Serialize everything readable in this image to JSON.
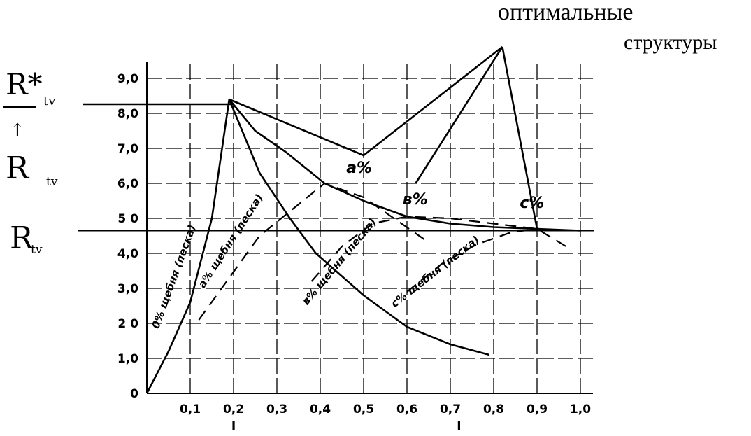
{
  "chart_data": {
    "type": "line",
    "title": "",
    "xlabel": "",
    "ylabel": "",
    "xlim": [
      0,
      1.0
    ],
    "ylim": [
      0,
      9.0
    ],
    "grid": true,
    "x_ticks": [
      "0,1",
      "0,2",
      "0,3",
      "0,4",
      "0,5",
      "0,6",
      "0,7",
      "0,8",
      "0,9",
      "1,0"
    ],
    "y_ticks": [
      {
        "v": 0,
        "label": "0"
      },
      {
        "v": 1,
        "label": "1,0"
      },
      {
        "v": 2,
        "label": "2 0"
      },
      {
        "v": 3,
        "label": "3,0"
      },
      {
        "v": 4,
        "label": "4,0"
      },
      {
        "v": 5,
        "label": "5 0"
      },
      {
        "v": 6,
        "label": "6,0"
      },
      {
        "v": 7,
        "label": "7,0"
      },
      {
        "v": 8,
        "label": "8,0"
      },
      {
        "v": 9,
        "label": "9,0"
      }
    ],
    "levels": [
      {
        "label": "R*",
        "sub": "tv",
        "y": 8.5
      },
      {
        "label": "R",
        "sub": "tv",
        "y": 4.65
      }
    ],
    "arrow": {
      "symbol": "↑",
      "label": "R",
      "sub": "tv"
    },
    "optimal_label": [
      "оптимальные",
      "структуры"
    ],
    "solid_series": [
      {
        "points": [
          [
            0.0,
            0.0
          ],
          [
            0.05,
            1.2
          ],
          [
            0.1,
            2.6
          ],
          [
            0.15,
            5.0
          ],
          [
            0.19,
            8.4
          ]
        ]
      },
      {
        "points": [
          [
            0.19,
            8.4
          ],
          [
            0.26,
            6.3
          ],
          [
            0.33,
            5.0
          ],
          [
            0.39,
            4.0
          ],
          [
            0.5,
            2.8
          ],
          [
            0.6,
            1.9
          ],
          [
            0.7,
            1.4
          ],
          [
            0.79,
            1.1
          ]
        ]
      },
      {
        "points": [
          [
            0.19,
            8.4
          ],
          [
            0.25,
            7.5
          ],
          [
            0.32,
            6.9
          ],
          [
            0.41,
            6.0
          ],
          [
            0.5,
            5.5
          ],
          [
            0.6,
            5.05
          ],
          [
            0.7,
            4.85
          ],
          [
            0.8,
            4.75
          ],
          [
            0.9,
            4.7
          ],
          [
            1.0,
            4.65
          ]
        ]
      },
      {
        "points": [
          [
            0.19,
            8.4
          ],
          [
            0.5,
            6.8
          ],
          [
            0.82,
            9.9
          ]
        ]
      },
      {
        "points": [
          [
            0.62,
            6.0
          ],
          [
            0.82,
            9.9
          ]
        ]
      },
      {
        "points": [
          [
            0.82,
            9.9
          ],
          [
            0.9,
            4.7
          ]
        ]
      }
    ],
    "dashed_series": [
      {
        "points": [
          [
            0.12,
            2.1
          ],
          [
            0.19,
            3.3
          ],
          [
            0.26,
            4.5
          ],
          [
            0.34,
            5.3
          ],
          [
            0.41,
            6.0
          ],
          [
            0.5,
            5.6
          ],
          [
            0.57,
            5.0
          ],
          [
            0.64,
            4.4
          ]
        ]
      },
      {
        "points": [
          [
            0.38,
            3.2
          ],
          [
            0.45,
            4.2
          ],
          [
            0.52,
            4.85
          ],
          [
            0.6,
            5.05
          ],
          [
            0.7,
            5.0
          ],
          [
            0.8,
            4.85
          ],
          [
            0.9,
            4.7
          ],
          [
            0.98,
            4.1
          ]
        ]
      },
      {
        "points": [
          [
            0.6,
            2.9
          ],
          [
            0.68,
            3.7
          ],
          [
            0.76,
            4.25
          ],
          [
            0.84,
            4.6
          ],
          [
            0.9,
            4.7
          ]
        ]
      }
    ],
    "point_labels": [
      {
        "text": "a%",
        "x": 0.46,
        "y": 6.3
      },
      {
        "text": "в%",
        "x": 0.59,
        "y": 5.4
      },
      {
        "text": "c%",
        "x": 0.86,
        "y": 5.3
      }
    ],
    "curve_labels": [
      {
        "text": "0% щебня (песка)",
        "x": 0.07,
        "y": 3.3,
        "angle": -70
      },
      {
        "text": "a% щебня (песка)",
        "x": 0.2,
        "y": 4.3,
        "angle": -57
      },
      {
        "text": "в% щебня (песка)",
        "x": 0.45,
        "y": 3.7,
        "angle": -50
      },
      {
        "text": "c% щебня (песка)",
        "x": 0.67,
        "y": 3.4,
        "angle": -38
      }
    ],
    "markers": [
      {
        "label": "I",
        "x": 0.2
      },
      {
        "label": "I",
        "x": 0.72
      }
    ]
  }
}
